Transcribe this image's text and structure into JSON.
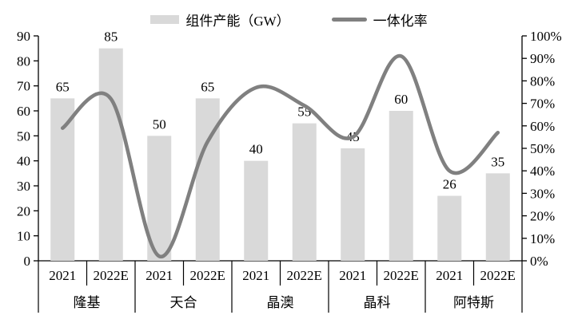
{
  "chart_data": {
    "type": "combo bar+line",
    "title": "",
    "group_labels": [
      "隆基",
      "天合",
      "晶澳",
      "晶科",
      "阿特斯"
    ],
    "x_labels": [
      "2021",
      "2022E",
      "2021",
      "2022E",
      "2021",
      "2022E",
      "2021",
      "2022E",
      "2021",
      "2022E"
    ],
    "series": [
      {
        "name": "组件产能（GW）",
        "type": "bar",
        "axis": "left",
        "color": "#d9d9d9",
        "values": [
          65,
          85,
          50,
          65,
          40,
          55,
          45,
          60,
          26,
          35
        ],
        "data_labels": [
          65,
          85,
          50,
          65,
          40,
          55,
          45,
          60,
          26,
          35
        ]
      },
      {
        "name": "一体化率",
        "type": "line",
        "axis": "right",
        "color": "#808080",
        "smooth": true,
        "unit": "%",
        "values": [
          59,
          72,
          2,
          53,
          77,
          69,
          55,
          91,
          40,
          57
        ]
      }
    ],
    "left_axis": {
      "min": 0,
      "max": 90,
      "step": 10,
      "labels": [
        "0",
        "10",
        "20",
        "30",
        "40",
        "50",
        "60",
        "70",
        "80",
        "90"
      ]
    },
    "right_axis": {
      "min": 0,
      "max": 100,
      "step": 10,
      "labels": [
        "0%",
        "10%",
        "20%",
        "30%",
        "40%",
        "50%",
        "60%",
        "70%",
        "80%",
        "90%",
        "100%"
      ]
    },
    "grid": false,
    "legend_position": "top",
    "text_color": "#000000",
    "axis_color": "#000000"
  }
}
